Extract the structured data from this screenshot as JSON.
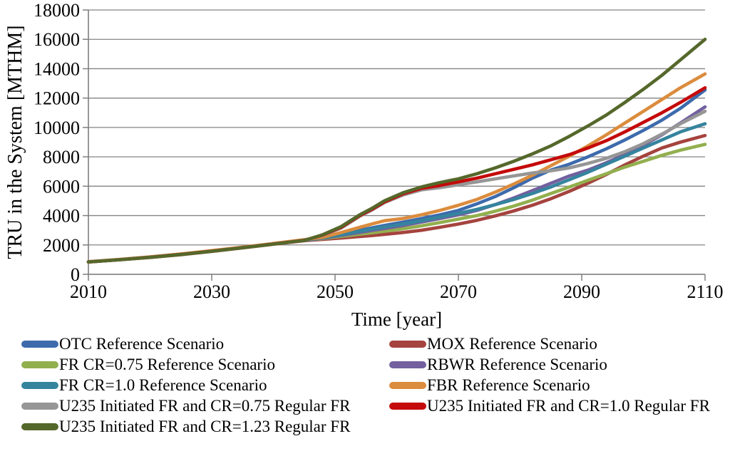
{
  "figure": {
    "background": "#FFFFFF"
  },
  "axes": {
    "y_title": "TRU in the System [MTHM]",
    "x_title": "Time [year]",
    "y_tick_labels": [
      "0",
      "2000",
      "4000",
      "6000",
      "8000",
      "10000",
      "12000",
      "14000",
      "16000",
      "18000"
    ],
    "x_tick_labels": [
      "2010",
      "2030",
      "2050",
      "2070",
      "2090",
      "2110"
    ],
    "grid_color": "#848484",
    "axis_color": "#7F7F7F",
    "text_color": "#000000"
  },
  "chart_data": {
    "type": "line",
    "title": "",
    "xlabel": "Time [year]",
    "ylabel": "TRU in the System [MTHM]",
    "xlim": [
      2010,
      2110
    ],
    "ylim": [
      0,
      18000
    ],
    "x_tick_step": 20,
    "y_tick_step": 2000,
    "grid": true,
    "legend_position": "bottom-two-columns",
    "line_width": 4.6,
    "x": [
      2010,
      2015,
      2020,
      2025,
      2030,
      2035,
      2040,
      2045,
      2048,
      2051,
      2054,
      2056,
      2058,
      2061,
      2064,
      2067,
      2070,
      2073,
      2076,
      2079,
      2082,
      2085,
      2088,
      2091,
      2094,
      2097,
      2100,
      2103,
      2106,
      2110
    ],
    "series": [
      {
        "name": "OTC Reference Scenario",
        "color": "#3D6BAC",
        "values": [
          850,
          1000,
          1170,
          1370,
          1590,
          1830,
          2080,
          2330,
          2500,
          2750,
          3000,
          3170,
          3330,
          3550,
          3800,
          4050,
          4350,
          4800,
          5300,
          5900,
          6550,
          7100,
          7500,
          8000,
          8550,
          9150,
          9800,
          10500,
          11300,
          12550
        ]
      },
      {
        "name": "MOX Reference Scenario",
        "color": "#A5433E",
        "values": [
          840,
          990,
          1150,
          1340,
          1560,
          1800,
          2050,
          2290,
          2380,
          2470,
          2570,
          2640,
          2720,
          2850,
          3000,
          3200,
          3420,
          3680,
          3980,
          4320,
          4700,
          5150,
          5650,
          6200,
          6800,
          7450,
          8050,
          8600,
          9000,
          9450
        ]
      },
      {
        "name": "FR CR=0.75 Reference Scenario",
        "color": "#92AF4E",
        "values": [
          845,
          995,
          1160,
          1350,
          1570,
          1810,
          2060,
          2310,
          2430,
          2580,
          2730,
          2830,
          2930,
          3100,
          3300,
          3520,
          3760,
          4000,
          4300,
          4650,
          5050,
          5500,
          5950,
          6400,
          6850,
          7300,
          7700,
          8100,
          8450,
          8850
        ]
      },
      {
        "name": "RBWR Reference Scenario",
        "color": "#72609F",
        "values": [
          848,
          998,
          1165,
          1360,
          1580,
          1820,
          2070,
          2320,
          2460,
          2650,
          2850,
          2990,
          3120,
          3320,
          3550,
          3800,
          4050,
          4350,
          4750,
          5200,
          5700,
          6200,
          6700,
          7100,
          7600,
          8150,
          8800,
          9500,
          10300,
          11400
        ]
      },
      {
        "name": "FR CR=1.0 Reference Scenario",
        "color": "#35849E",
        "values": [
          852,
          1002,
          1172,
          1372,
          1592,
          1832,
          2082,
          2332,
          2480,
          2700,
          2930,
          3080,
          3220,
          3420,
          3650,
          3900,
          4150,
          4420,
          4750,
          5100,
          5500,
          5950,
          6450,
          6950,
          7500,
          8050,
          8600,
          9150,
          9700,
          10250
        ]
      },
      {
        "name": "FBR Reference Scenario",
        "color": "#DB8C3D",
        "values": [
          860,
          1010,
          1185,
          1390,
          1610,
          1850,
          2100,
          2360,
          2520,
          2850,
          3200,
          3430,
          3650,
          3800,
          4050,
          4350,
          4700,
          5100,
          5600,
          6150,
          6750,
          7400,
          8050,
          8750,
          9500,
          10300,
          11100,
          11900,
          12700,
          13650
        ]
      },
      {
        "name": "U235 Initiated FR and CR=0.75 Regular FR",
        "color": "#969696",
        "values": [
          846,
          996,
          1162,
          1355,
          1575,
          1815,
          2065,
          2315,
          2660,
          3150,
          3950,
          4380,
          4880,
          5400,
          5750,
          5900,
          6100,
          6300,
          6500,
          6700,
          6900,
          7050,
          7250,
          7550,
          7900,
          8350,
          8900,
          9550,
          10250,
          11100
        ]
      },
      {
        "name": "U235 Initiated FR and CR=1.0 Regular FR",
        "color": "#C40A0A",
        "values": [
          844,
          994,
          1158,
          1352,
          1572,
          1812,
          2062,
          2312,
          2680,
          3200,
          4000,
          4430,
          4930,
          5480,
          5850,
          6050,
          6300,
          6550,
          6850,
          7150,
          7450,
          7800,
          8150,
          8600,
          9100,
          9700,
          10350,
          11000,
          11700,
          12700
        ]
      },
      {
        "name": "U235 Initiated FR and CR=1.23 Regular FR",
        "color": "#55682B",
        "values": [
          842,
          992,
          1155,
          1348,
          1568,
          1808,
          2058,
          2308,
          2700,
          3250,
          4050,
          4500,
          5000,
          5550,
          5950,
          6250,
          6500,
          6850,
          7250,
          7700,
          8200,
          8750,
          9400,
          10100,
          10850,
          11700,
          12600,
          13550,
          14600,
          16000
        ]
      }
    ]
  }
}
